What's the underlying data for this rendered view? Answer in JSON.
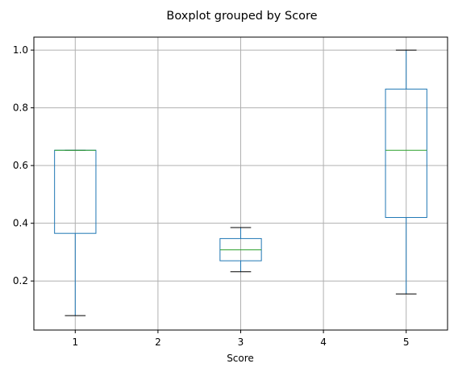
{
  "chart_data": {
    "type": "box",
    "title": "Boxplot grouped by Score",
    "xlabel": "Score",
    "ylabel": "",
    "categories": [
      "1",
      "2",
      "3",
      "4",
      "5"
    ],
    "yticks": [
      0.2,
      0.4,
      0.6,
      0.8,
      1.0
    ],
    "ytick_labels": [
      "0.2",
      "0.4",
      "0.6",
      "0.8",
      "1.0"
    ],
    "ylim": [
      0.03,
      1.045
    ],
    "grid": true,
    "box_color": "#1f77b4",
    "median_color": "#2ca02c",
    "boxes": [
      {
        "category": "1",
        "whisker_low": 0.08,
        "q1": 0.365,
        "median": 0.653,
        "q3": 0.653,
        "whisker_high": 0.653
      },
      {
        "category": "3",
        "whisker_low": 0.232,
        "q1": 0.27,
        "median": 0.308,
        "q3": 0.347,
        "whisker_high": 0.385
      },
      {
        "category": "5",
        "whisker_low": 0.155,
        "q1": 0.42,
        "median": 0.653,
        "q3": 0.865,
        "whisker_high": 1.0
      }
    ]
  }
}
